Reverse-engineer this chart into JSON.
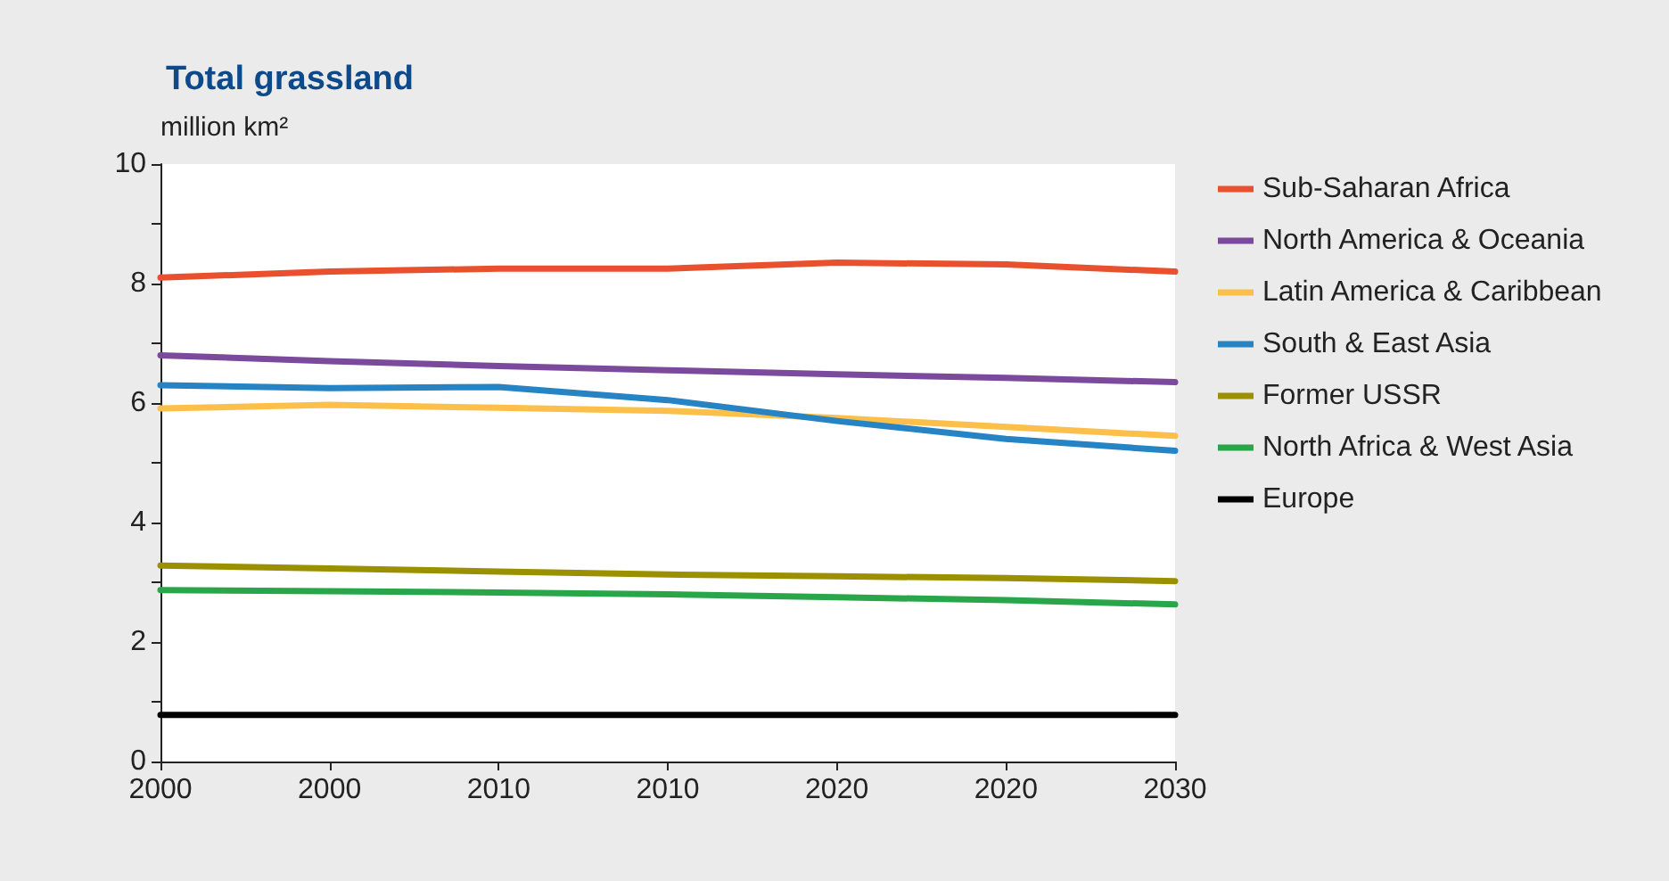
{
  "chart_data": {
    "type": "line",
    "title": "Total grassland",
    "ylabel": "million km²",
    "categories": [
      "2000",
      "2000",
      "2010",
      "2010",
      "2020",
      "2020",
      "2030"
    ],
    "series": [
      {
        "name": "Sub-Saharan Africa",
        "color": "#e8502e",
        "values": [
          8.1,
          8.2,
          8.25,
          8.25,
          8.35,
          8.32,
          8.2
        ]
      },
      {
        "name": "North America & Oceania",
        "color": "#7b4a9c",
        "values": [
          6.8,
          6.7,
          6.62,
          6.55,
          6.48,
          6.42,
          6.35
        ]
      },
      {
        "name": "Latin America & Caribbean",
        "color": "#fcc04a",
        "values": [
          5.91,
          5.97,
          5.92,
          5.87,
          5.75,
          5.6,
          5.45
        ]
      },
      {
        "name": "South & East Asia",
        "color": "#2684c5",
        "values": [
          6.3,
          6.25,
          6.27,
          6.05,
          5.7,
          5.4,
          5.2
        ]
      },
      {
        "name": "Former USSR",
        "color": "#9a9000",
        "values": [
          3.28,
          3.23,
          3.18,
          3.13,
          3.1,
          3.07,
          3.02
        ]
      },
      {
        "name": "North Africa & West Asia",
        "color": "#2aa64a",
        "values": [
          2.87,
          2.85,
          2.83,
          2.8,
          2.75,
          2.7,
          2.63
        ]
      },
      {
        "name": "Europe",
        "color": "#000000",
        "values": [
          0.78,
          0.78,
          0.78,
          0.78,
          0.78,
          0.78,
          0.78
        ]
      }
    ],
    "ylim": [
      0,
      10
    ],
    "yticks": [
      0,
      {
        "value": 1,
        "label": null
      },
      2,
      {
        "value": 3,
        "label": null
      },
      4,
      {
        "value": 5,
        "label": null
      },
      6,
      {
        "value": 7,
        "label": null
      },
      8,
      {
        "value": 9,
        "label": null
      },
      10
    ],
    "grid": false,
    "legend": "right",
    "marker": "none",
    "line_style": "solid"
  }
}
